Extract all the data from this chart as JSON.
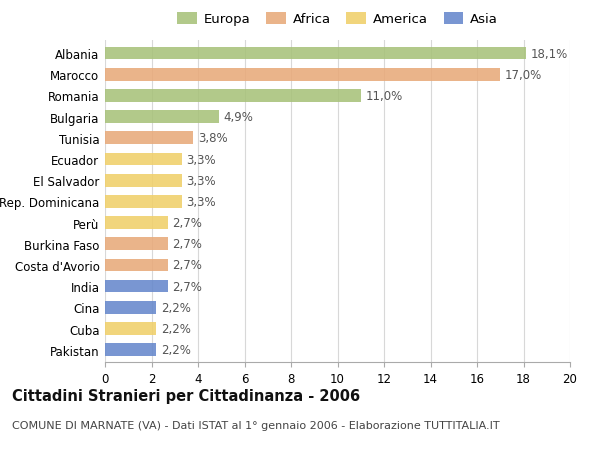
{
  "countries": [
    "Albania",
    "Marocco",
    "Romania",
    "Bulgaria",
    "Tunisia",
    "Ecuador",
    "El Salvador",
    "Rep. Dominicana",
    "Perù",
    "Burkina Faso",
    "Costa d'Avorio",
    "India",
    "Cina",
    "Cuba",
    "Pakistan"
  ],
  "values": [
    18.1,
    17.0,
    11.0,
    4.9,
    3.8,
    3.3,
    3.3,
    3.3,
    2.7,
    2.7,
    2.7,
    2.7,
    2.2,
    2.2,
    2.2
  ],
  "labels": [
    "18,1%",
    "17,0%",
    "11,0%",
    "4,9%",
    "3,8%",
    "3,3%",
    "3,3%",
    "3,3%",
    "2,7%",
    "2,7%",
    "2,7%",
    "2,7%",
    "2,2%",
    "2,2%",
    "2,2%"
  ],
  "continents": [
    "Europa",
    "Africa",
    "Europa",
    "Europa",
    "Africa",
    "America",
    "America",
    "America",
    "America",
    "Africa",
    "Africa",
    "Asia",
    "Asia",
    "America",
    "Asia"
  ],
  "colors": {
    "Europa": "#a8c27a",
    "Africa": "#e8aa7a",
    "America": "#f0d06a",
    "Asia": "#6688cc"
  },
  "xlim": [
    0,
    20
  ],
  "xticks": [
    0,
    2,
    4,
    6,
    8,
    10,
    12,
    14,
    16,
    18,
    20
  ],
  "title": "Cittadini Stranieri per Cittadinanza - 2006",
  "subtitle": "COMUNE DI MARNATE (VA) - Dati ISTAT al 1° gennaio 2006 - Elaborazione TUTTITALIA.IT",
  "background_color": "#ffffff",
  "grid_color": "#d8d8d8",
  "bar_height": 0.6,
  "label_fontsize": 8.5,
  "title_fontsize": 10.5,
  "subtitle_fontsize": 8,
  "tick_fontsize": 8.5,
  "legend_fontsize": 9.5,
  "legend_order": [
    "Europa",
    "Africa",
    "America",
    "Asia"
  ]
}
